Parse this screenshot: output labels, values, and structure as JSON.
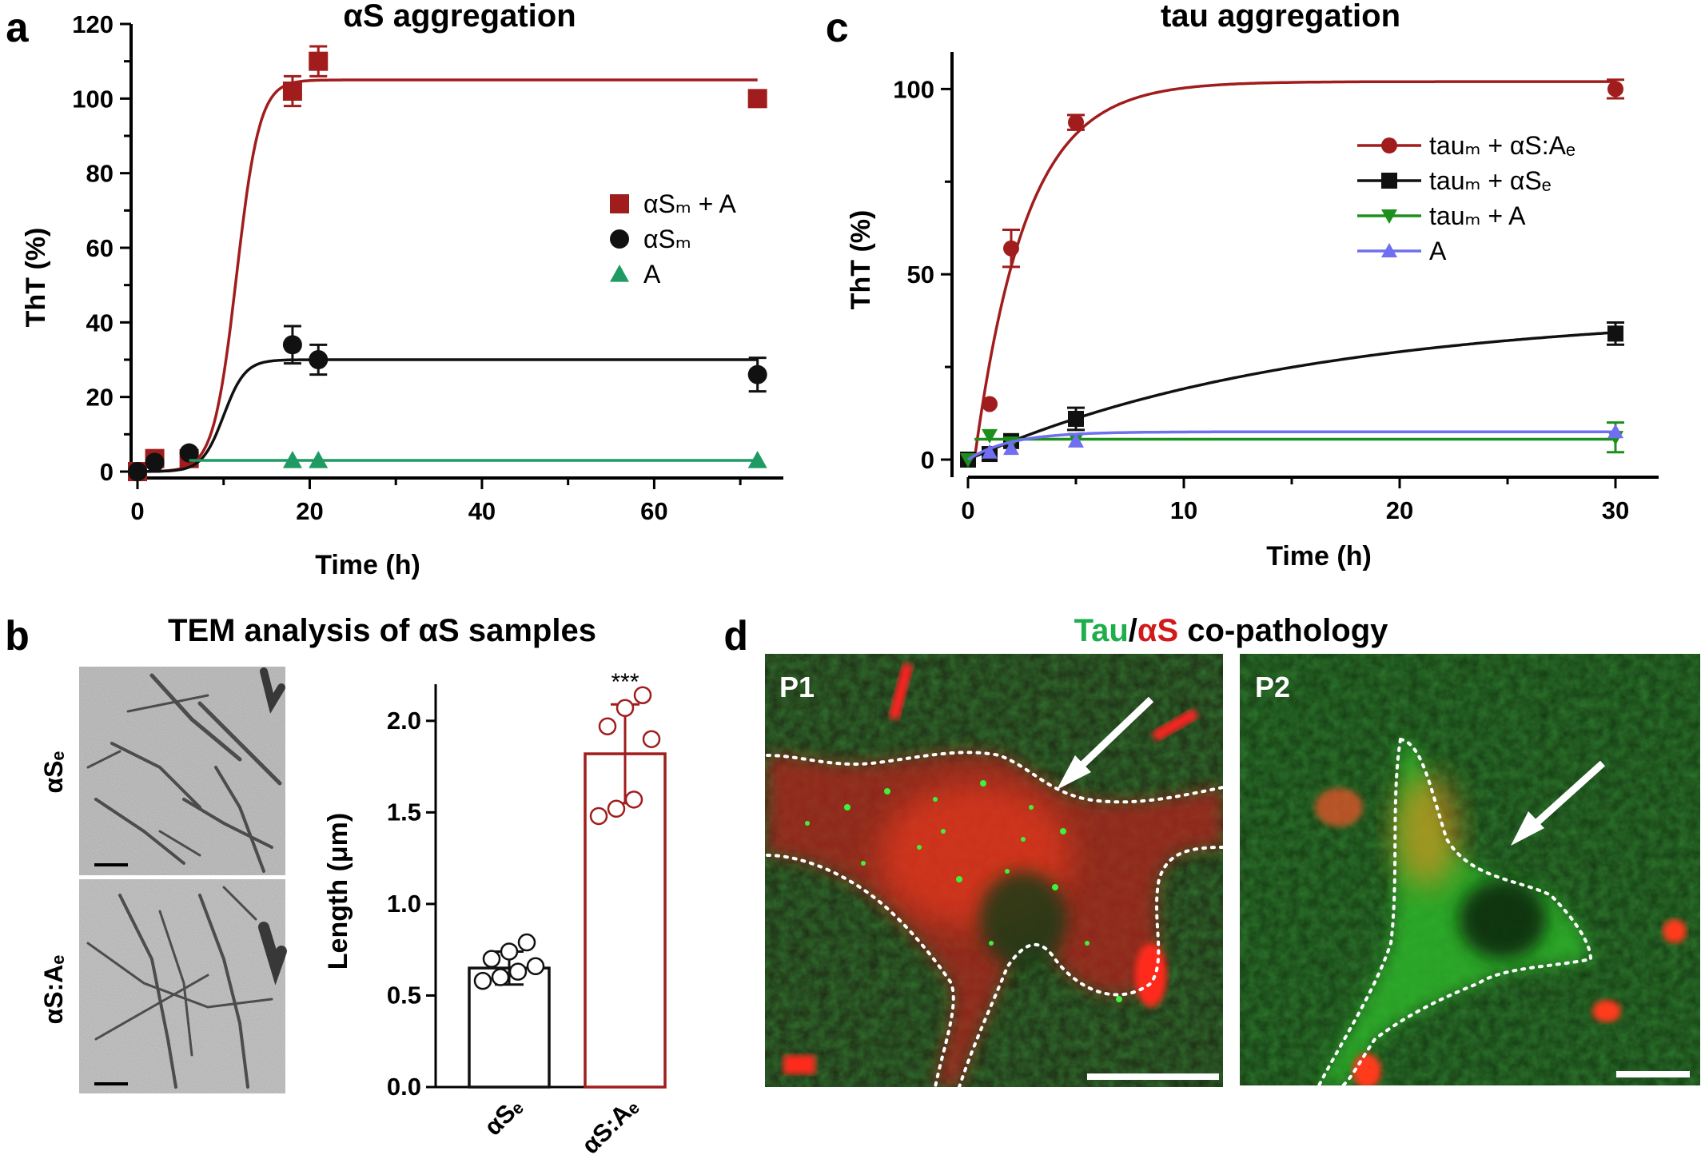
{
  "panel_letters": {
    "a": "a",
    "b": "b",
    "c": "c",
    "d": "d"
  },
  "colors": {
    "red": "#a11d1d",
    "black": "#111111",
    "green": "#1f9a63",
    "green_tri": "#1c8f1c",
    "blue": "#6f6ff0"
  },
  "chart_data": [
    {
      "panel": "a",
      "type": "scatter",
      "title": "αS aggregation",
      "xlabel": "Time (h)",
      "ylabel": "ThT (%)",
      "xlim": [
        0,
        75
      ],
      "ylim": [
        0,
        120
      ],
      "xticks": [
        0,
        20,
        40,
        60
      ],
      "yticks": [
        0,
        20,
        40,
        60,
        80,
        100,
        120
      ],
      "legend_position": "right",
      "series": [
        {
          "name": "αSₘ + A",
          "color": "#a11d1d",
          "marker": "square",
          "x": [
            0,
            2,
            6,
            18,
            21,
            72
          ],
          "y": [
            0,
            3.5,
            3.5,
            102,
            110,
            100
          ],
          "err": [
            0,
            0,
            0,
            4,
            4,
            0
          ],
          "fit": {
            "type": "sigmoid",
            "top": 105,
            "x50": 11.5,
            "k": 0.75
          }
        },
        {
          "name": "αSₘ",
          "color": "#111111",
          "marker": "circle",
          "x": [
            0,
            2,
            6,
            18,
            21,
            72
          ],
          "y": [
            0,
            2.5,
            5,
            34,
            30,
            26
          ],
          "err": [
            0,
            0,
            0,
            5,
            4,
            4.5
          ],
          "fit": {
            "type": "sigmoid",
            "top": 30,
            "x50": 10,
            "k": 0.8
          }
        },
        {
          "name": "A",
          "color": "#1f9a63",
          "marker": "triangle",
          "x": [
            18,
            21,
            72
          ],
          "y": [
            3,
            3,
            3
          ],
          "err": [
            0,
            0,
            0
          ],
          "fit": {
            "type": "flat",
            "value": 3
          }
        }
      ]
    },
    {
      "panel": "c",
      "type": "scatter",
      "title": "tau aggregation",
      "xlabel": "Time (h)",
      "ylabel": "ThT (%)",
      "xlim": [
        0,
        32
      ],
      "ylim": [
        0,
        110
      ],
      "xticks": [
        0,
        10,
        20,
        30
      ],
      "yticks": [
        0,
        50,
        100
      ],
      "legend_position": "right",
      "series": [
        {
          "name": "tauₘ + αS:Aₑ",
          "color": "#a11d1d",
          "marker": "circle",
          "x": [
            0,
            1,
            2,
            5,
            30
          ],
          "y": [
            0,
            15,
            57,
            91,
            100
          ],
          "err": [
            0,
            0,
            5,
            2,
            2.5
          ],
          "fit": {
            "type": "exp",
            "top": 102,
            "k": 0.42,
            "x0": 0.3
          }
        },
        {
          "name": "tauₘ + αSₑ",
          "color": "#111111",
          "marker": "square",
          "x": [
            0,
            1,
            2,
            5,
            30
          ],
          "y": [
            0,
            1.5,
            5,
            11,
            34
          ],
          "err": [
            0,
            0,
            0,
            3,
            3
          ],
          "fit": {
            "type": "exp",
            "top": 40,
            "k": 0.065,
            "x0": 0
          }
        },
        {
          "name": "tauₘ + A",
          "color": "#1c8f1c",
          "marker": "tri-down",
          "x": [
            0,
            1,
            2,
            5,
            30
          ],
          "y": [
            0,
            6.5,
            4.5,
            5.5,
            6
          ],
          "err": [
            0,
            0,
            0,
            0,
            4
          ],
          "fit": {
            "type": "flat",
            "value": 5.5
          }
        },
        {
          "name": "A",
          "color": "#6f6ff0",
          "marker": "tri-up",
          "x": [
            1,
            2,
            5,
            30
          ],
          "y": [
            2,
            3,
            5,
            7.5
          ],
          "err": [
            0,
            0,
            0,
            0
          ],
          "fit": {
            "type": "exp",
            "top": 7.5,
            "k": 0.5,
            "x0": 0
          }
        }
      ]
    },
    {
      "panel": "b",
      "type": "bar",
      "title": "TEM analysis of αS samples",
      "ylabel": "Length (μm)",
      "ylim": [
        0,
        2.2
      ],
      "yticks": [
        "0.0",
        "0.5",
        "1.0",
        "1.5",
        "2.0"
      ],
      "categories": [
        "αSₑ",
        "αS:Aₑ"
      ],
      "values": [
        0.65,
        1.82
      ],
      "errors": [
        0.09,
        0.27
      ],
      "colors": [
        "#111111",
        "#a11d1d"
      ],
      "points": [
        [
          0.58,
          0.6,
          0.63,
          0.66,
          0.7,
          0.74,
          0.79
        ],
        [
          1.48,
          1.52,
          1.57,
          1.9,
          1.97,
          2.07,
          2.14
        ]
      ],
      "annotation": "***"
    }
  ],
  "tem": {
    "row_labels": [
      "αSₑ",
      "αS:Aₑ"
    ]
  },
  "panel_d": {
    "title_tau": "Tau",
    "title_slash": "/",
    "title_as": "αS",
    "title_rest": " co-pathology",
    "images": [
      {
        "label": "P1"
      },
      {
        "label": "P2"
      }
    ]
  }
}
